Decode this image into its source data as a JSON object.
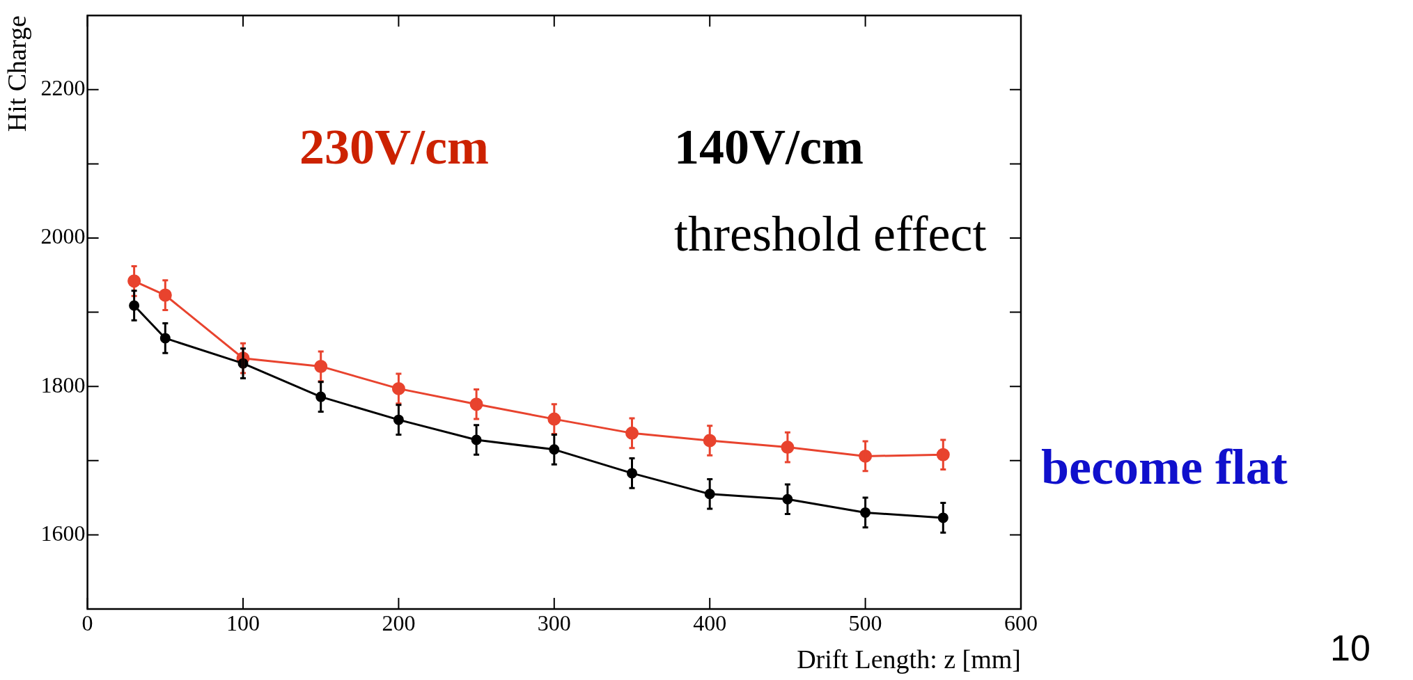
{
  "chart_data": {
    "type": "line",
    "xlabel": "Drift Length: z [mm]",
    "ylabel": "Hit Charge",
    "x": [
      30,
      50,
      100,
      150,
      200,
      250,
      300,
      350,
      400,
      450,
      500,
      550
    ],
    "series": [
      {
        "color": "#e8432e",
        "values": [
          1942,
          1923,
          1838,
          1827,
          1797,
          1776,
          1756,
          1737,
          1727,
          1718,
          1706,
          1708
        ],
        "errors": [
          20,
          20,
          20,
          20,
          20,
          20,
          20,
          20,
          20,
          20,
          20,
          20
        ]
      },
      {
        "color": "#000000",
        "values": [
          1909,
          1865,
          1831,
          1786,
          1755,
          1728,
          1715,
          1683,
          1655,
          1648,
          1630,
          1623
        ],
        "errors": [
          20,
          20,
          20,
          20,
          20,
          20,
          20,
          20,
          20,
          20,
          20,
          20
        ]
      }
    ],
    "xlim": [
      0,
      600
    ],
    "xticks": [
      0,
      100,
      200,
      300,
      400,
      500,
      600
    ],
    "ylim": [
      1500,
      2300
    ],
    "yticks": [
      {
        "value": 1500,
        "label": null
      },
      1600,
      {
        "value": 1700,
        "label": null
      },
      1800,
      {
        "value": 1900,
        "label": null
      },
      2000,
      {
        "value": 2100,
        "label": null
      },
      2200
    ],
    "grid": false,
    "legend": false,
    "marker": "circle",
    "line_style": "solid",
    "annotations": [
      "230V/cm",
      "140V/cm",
      "threshold effect",
      "become flat",
      "10"
    ]
  }
}
